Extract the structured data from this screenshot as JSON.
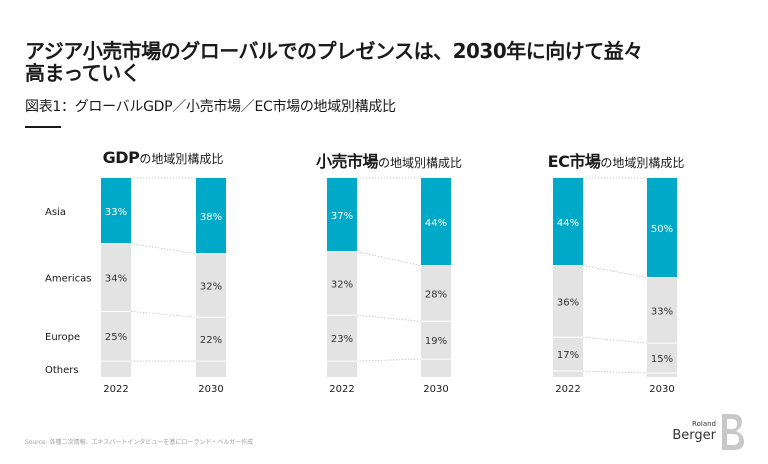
{
  "headline": {
    "line1": "アジア小売市場のグローバルでのプレゼンスは、2030年に向けて益々",
    "line2": "高まっていく"
  },
  "subtitle": "図表1：グローバルGDP／小売市場／EC市場の地域別構成比",
  "row_labels": [
    "Asia",
    "Americas",
    "Europe",
    "Others"
  ],
  "colors": {
    "asia": "#00a9c7",
    "others_regions": "#e3e3e3",
    "separator": "#ffffff",
    "connector": "#c4c4c4"
  },
  "chart_data": [
    {
      "type": "stacked-bar",
      "title": "GDP",
      "title_suffix": "の地域別構成比",
      "categories": [
        "2022",
        "2030"
      ],
      "series": [
        {
          "name": "Asia",
          "values": [
            33,
            38
          ]
        },
        {
          "name": "Americas",
          "values": [
            34,
            32
          ]
        },
        {
          "name": "Europe",
          "values": [
            25,
            22
          ]
        },
        {
          "name": "Others",
          "values": [
            8,
            8
          ]
        }
      ],
      "labels": [
        [
          "33%",
          "34%",
          "25%",
          ""
        ],
        [
          "38%",
          "32%",
          "22%",
          ""
        ]
      ]
    },
    {
      "type": "stacked-bar",
      "title": "小売市場",
      "title_suffix": "の地域別構成比",
      "categories": [
        "2022",
        "2030"
      ],
      "series": [
        {
          "name": "Asia",
          "values": [
            37,
            44
          ]
        },
        {
          "name": "Americas",
          "values": [
            32,
            28
          ]
        },
        {
          "name": "Europe",
          "values": [
            23,
            19
          ]
        },
        {
          "name": "Others",
          "values": [
            8,
            9
          ]
        }
      ],
      "labels": [
        [
          "37%",
          "32%",
          "23%",
          ""
        ],
        [
          "44%",
          "28%",
          "19%",
          ""
        ]
      ]
    },
    {
      "type": "stacked-bar",
      "title": "EC市場",
      "title_suffix": "の地域別構成比",
      "categories": [
        "2022",
        "2030"
      ],
      "series": [
        {
          "name": "Asia",
          "values": [
            44,
            50
          ]
        },
        {
          "name": "Americas",
          "values": [
            36,
            33
          ]
        },
        {
          "name": "Europe",
          "values": [
            17,
            15
          ]
        },
        {
          "name": "Others",
          "values": [
            3,
            2
          ]
        }
      ],
      "labels": [
        [
          "44%",
          "36%",
          "17%",
          ""
        ],
        [
          "50%",
          "33%",
          "15%",
          ""
        ]
      ]
    }
  ],
  "footer": {
    "source": "Source: 各種二次情報、エキスパートインタビューを基にローランド・ベルガー作成"
  },
  "logo": {
    "roland": "Roland",
    "berger": "Berger"
  }
}
